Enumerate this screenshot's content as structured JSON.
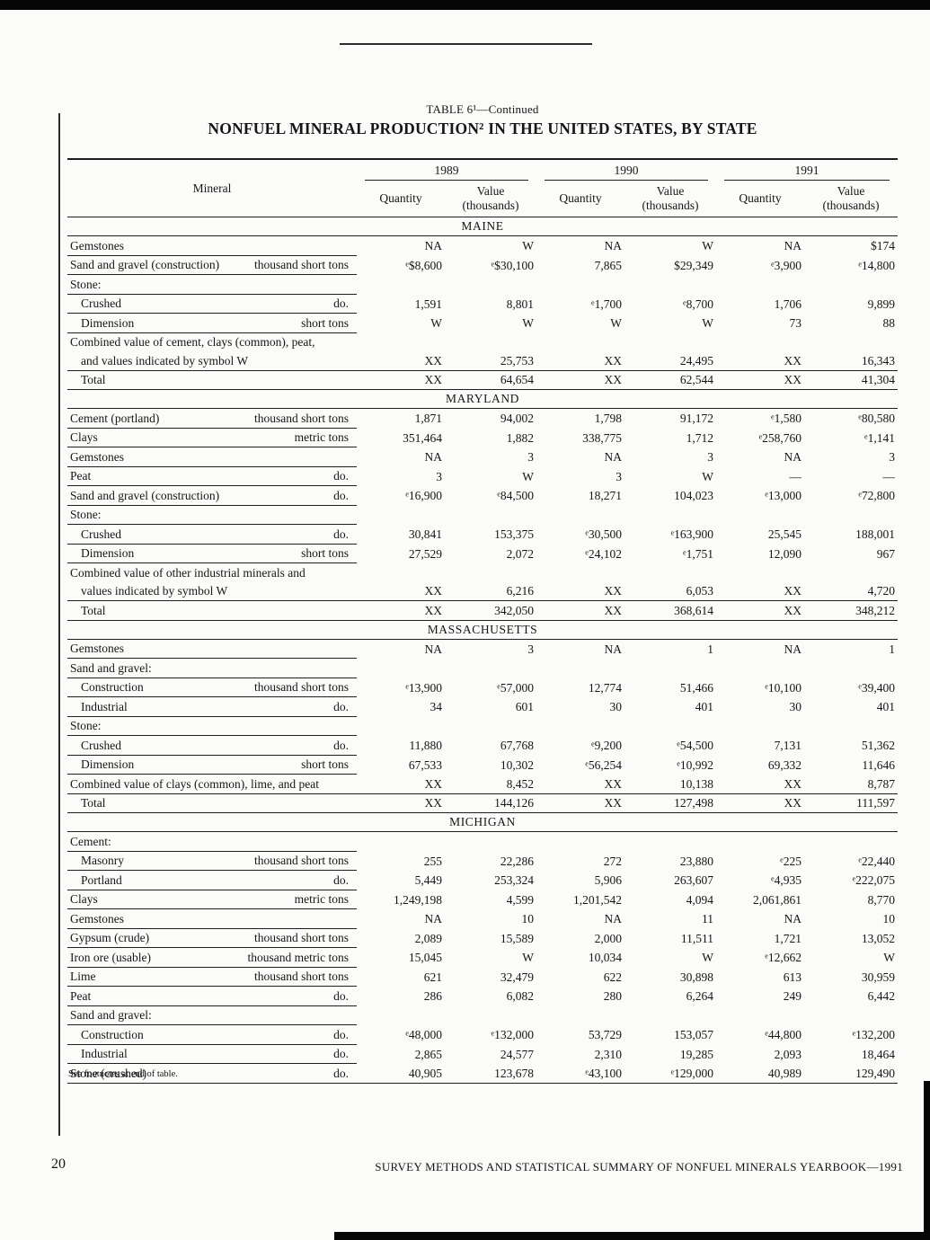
{
  "page": {
    "table_label": "TABLE 6¹—Continued",
    "title": "NONFUEL MINERAL PRODUCTION² IN THE UNITED STATES, BY STATE",
    "footnote": "See footnotes at end of table.",
    "page_number": "20",
    "running_footer": "SURVEY METHODS AND STATISTICAL SUMMARY OF NONFUEL MINERALS YEARBOOK—1991"
  },
  "header": {
    "mineral": "Mineral",
    "years": [
      "1989",
      "1990",
      "1991"
    ],
    "quantity": "Quantity",
    "value_line1": "Value",
    "value_line2": "(thousands)"
  },
  "sections": [
    {
      "name": "MAINE",
      "rows": [
        {
          "label": "Gemstones",
          "unit": "",
          "values": [
            "NA",
            "W",
            "NA",
            "W",
            "NA",
            "$174"
          ]
        },
        {
          "label": "Sand and gravel (construction)",
          "unit": "thousand short tons",
          "values": [
            "ᵉ$8,600",
            "ᵉ$30,100",
            "7,865",
            "$29,349",
            "ᵉ3,900",
            "ᵉ14,800"
          ]
        },
        {
          "label": "Stone:",
          "group": true
        },
        {
          "label": "Crushed",
          "indent": 1,
          "unit": "do.",
          "values": [
            "1,591",
            "8,801",
            "ᵉ1,700",
            "ᵉ8,700",
            "1,706",
            "9,899"
          ]
        },
        {
          "label": "Dimension",
          "indent": 1,
          "unit": "short tons",
          "values": [
            "W",
            "W",
            "W",
            "W",
            "73",
            "88"
          ]
        },
        {
          "lines": [
            "Combined value of cement, clays (common), peat,",
            "and values indicated by symbol W"
          ],
          "values": [
            "XX",
            "25,753",
            "XX",
            "24,495",
            "XX",
            "16,343"
          ]
        },
        {
          "label": "Total",
          "indent": 1,
          "total": true,
          "values": [
            "XX",
            "64,654",
            "XX",
            "62,544",
            "XX",
            "41,304"
          ]
        }
      ]
    },
    {
      "name": "MARYLAND",
      "rows": [
        {
          "label": "Cement (portland)",
          "unit": "thousand short tons",
          "values": [
            "1,871",
            "94,002",
            "1,798",
            "91,172",
            "ᵉ1,580",
            "ᵉ80,580"
          ]
        },
        {
          "label": "Clays",
          "unit": "metric tons",
          "values": [
            "351,464",
            "1,882",
            "338,775",
            "1,712",
            "ᵉ258,760",
            "ᵉ1,141"
          ]
        },
        {
          "label": "Gemstones",
          "unit": "",
          "values": [
            "NA",
            "3",
            "NA",
            "3",
            "NA",
            "3"
          ]
        },
        {
          "label": "Peat",
          "unit": "do.",
          "values": [
            "3",
            "W",
            "3",
            "W",
            "—",
            "—"
          ]
        },
        {
          "label": "Sand and gravel (construction)",
          "unit": "do.",
          "values": [
            "ᵉ16,900",
            "ᵉ84,500",
            "18,271",
            "104,023",
            "ᵉ13,000",
            "ᵉ72,800"
          ]
        },
        {
          "label": "Stone:",
          "group": true
        },
        {
          "label": "Crushed",
          "indent": 1,
          "unit": "do.",
          "values": [
            "30,841",
            "153,375",
            "ᵉ30,500",
            "ᵉ163,900",
            "25,545",
            "188,001"
          ]
        },
        {
          "label": "Dimension",
          "indent": 1,
          "unit": "short tons",
          "values": [
            "27,529",
            "2,072",
            "ᵉ24,102",
            "ᵉ1,751",
            "12,090",
            "967"
          ]
        },
        {
          "lines": [
            "Combined value of other industrial minerals and",
            "values indicated by symbol W"
          ],
          "values": [
            "XX",
            "6,216",
            "XX",
            "6,053",
            "XX",
            "4,720"
          ]
        },
        {
          "label": "Total",
          "indent": 1,
          "total": true,
          "values": [
            "XX",
            "342,050",
            "XX",
            "368,614",
            "XX",
            "348,212"
          ]
        }
      ]
    },
    {
      "name": "MASSACHUSETTS",
      "rows": [
        {
          "label": "Gemstones",
          "unit": "",
          "values": [
            "NA",
            "3",
            "NA",
            "1",
            "NA",
            "1"
          ]
        },
        {
          "label": "Sand and gravel:",
          "group": true
        },
        {
          "label": "Construction",
          "indent": 1,
          "unit": "thousand short tons",
          "values": [
            "ᵉ13,900",
            "ᵉ57,000",
            "12,774",
            "51,466",
            "ᵉ10,100",
            "ᵉ39,400"
          ]
        },
        {
          "label": "Industrial",
          "indent": 1,
          "unit": "do.",
          "values": [
            "34",
            "601",
            "30",
            "401",
            "30",
            "401"
          ]
        },
        {
          "label": "Stone:",
          "group": true
        },
        {
          "label": "Crushed",
          "indent": 1,
          "unit": "do.",
          "values": [
            "11,880",
            "67,768",
            "ᵉ9,200",
            "ᵉ54,500",
            "7,131",
            "51,362"
          ]
        },
        {
          "label": "Dimension",
          "indent": 1,
          "unit": "short tons",
          "values": [
            "67,533",
            "10,302",
            "ᵉ56,254",
            "ᵉ10,992",
            "69,332",
            "11,646"
          ]
        },
        {
          "label": "Combined value of clays (common), lime, and peat",
          "wide": true,
          "values": [
            "XX",
            "8,452",
            "XX",
            "10,138",
            "XX",
            "8,787"
          ]
        },
        {
          "label": "Total",
          "indent": 1,
          "total": true,
          "values": [
            "XX",
            "144,126",
            "XX",
            "127,498",
            "XX",
            "111,597"
          ]
        }
      ]
    },
    {
      "name": "MICHIGAN",
      "rows": [
        {
          "label": "Cement:",
          "group": true
        },
        {
          "label": "Masonry",
          "indent": 1,
          "unit": "thousand short tons",
          "values": [
            "255",
            "22,286",
            "272",
            "23,880",
            "ᵉ225",
            "ᵉ22,440"
          ]
        },
        {
          "label": "Portland",
          "indent": 1,
          "unit": "do.",
          "values": [
            "5,449",
            "253,324",
            "5,906",
            "263,607",
            "ᵉ4,935",
            "ᵉ222,075"
          ]
        },
        {
          "label": "Clays",
          "unit": "metric tons",
          "values": [
            "1,249,198",
            "4,599",
            "1,201,542",
            "4,094",
            "2,061,861",
            "8,770"
          ]
        },
        {
          "label": "Gemstones",
          "unit": "",
          "values": [
            "NA",
            "10",
            "NA",
            "11",
            "NA",
            "10"
          ]
        },
        {
          "label": "Gypsum (crude)",
          "unit": "thousand short tons",
          "values": [
            "2,089",
            "15,589",
            "2,000",
            "11,511",
            "1,721",
            "13,052"
          ]
        },
        {
          "label": "Iron ore (usable)",
          "unit": "thousand metric tons",
          "values": [
            "15,045",
            "W",
            "10,034",
            "W",
            "ᵉ12,662",
            "W"
          ]
        },
        {
          "label": "Lime",
          "unit": "thousand short tons",
          "values": [
            "621",
            "32,479",
            "622",
            "30,898",
            "613",
            "30,959"
          ]
        },
        {
          "label": "Peat",
          "unit": "do.",
          "values": [
            "286",
            "6,082",
            "280",
            "6,264",
            "249",
            "6,442"
          ]
        },
        {
          "label": "Sand and gravel:",
          "group": true
        },
        {
          "label": "Construction",
          "indent": 1,
          "unit": "do.",
          "values": [
            "ᵉ48,000",
            "ᵉ132,000",
            "53,729",
            "153,057",
            "ᵉ44,800",
            "ᵉ132,200"
          ]
        },
        {
          "label": "Industrial",
          "indent": 1,
          "unit": "do.",
          "values": [
            "2,865",
            "24,577",
            "2,310",
            "19,285",
            "2,093",
            "18,464"
          ]
        },
        {
          "label": "Stone (crushed)",
          "unit": "do.",
          "wide": true,
          "values": [
            "40,905",
            "123,678",
            "ᵉ43,100",
            "ᵉ129,000",
            "40,989",
            "129,490"
          ]
        }
      ]
    }
  ]
}
